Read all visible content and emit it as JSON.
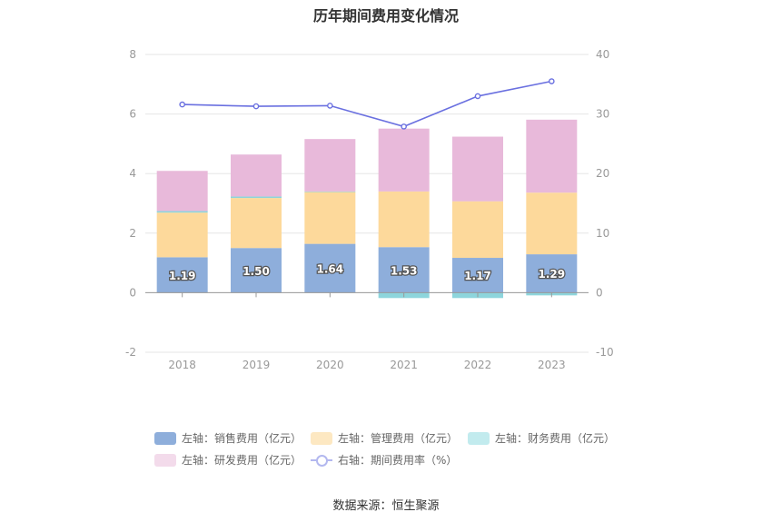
{
  "title": "历年期间费用变化情况",
  "source": "数据来源：恒生聚源",
  "colors": {
    "sales": "#8eaedb",
    "admin": "#fdd99b",
    "finance": "#8dd5dc",
    "rnd": "#e8b9da",
    "rate": "#6a70e0"
  },
  "legend": [
    {
      "key": "sales",
      "label": "左轴：销售费用（亿元）"
    },
    {
      "key": "admin",
      "label": "左轴：管理费用（亿元）"
    },
    {
      "key": "finance",
      "label": "左轴：财务费用（亿元）"
    },
    {
      "key": "rnd",
      "label": "左轴：研发费用（亿元）"
    },
    {
      "key": "rate",
      "label": "右轴：期间费用率（%）"
    }
  ],
  "chart_data": {
    "type": "bar",
    "stacked": true,
    "categories": [
      "2018",
      "2019",
      "2020",
      "2021",
      "2022",
      "2023"
    ],
    "y_left": {
      "ylim": [
        -2,
        8
      ],
      "ticks": [
        -2,
        0,
        2,
        4,
        6,
        8
      ]
    },
    "y_right": {
      "ylim": [
        -10,
        40
      ],
      "ticks": [
        -10,
        0,
        10,
        20,
        30,
        40
      ]
    },
    "series": [
      {
        "name": "左轴：销售费用（亿元）",
        "key": "sales",
        "axis": "left",
        "values": [
          1.19,
          1.5,
          1.64,
          1.53,
          1.17,
          1.29
        ],
        "labels": [
          "1.19",
          "1.50",
          "1.64",
          "1.53",
          "1.17",
          "1.29"
        ]
      },
      {
        "name": "左轴：管理费用（亿元）",
        "key": "admin",
        "axis": "left",
        "values": [
          1.5,
          1.68,
          1.74,
          1.87,
          1.9,
          2.07
        ]
      },
      {
        "name": "左轴：财务费用（亿元）",
        "key": "finance",
        "axis": "left",
        "values": [
          0.05,
          0.05,
          0.02,
          -0.18,
          -0.18,
          -0.09
        ]
      },
      {
        "name": "左轴：研发费用（亿元）",
        "key": "rnd",
        "axis": "left",
        "values": [
          1.35,
          1.41,
          1.76,
          2.11,
          2.17,
          2.45
        ]
      },
      {
        "name": "右轴：期间费用率（%）",
        "key": "rate",
        "axis": "right",
        "type": "line",
        "values": [
          31.6,
          31.3,
          31.4,
          27.9,
          33.0,
          35.5
        ]
      }
    ]
  }
}
